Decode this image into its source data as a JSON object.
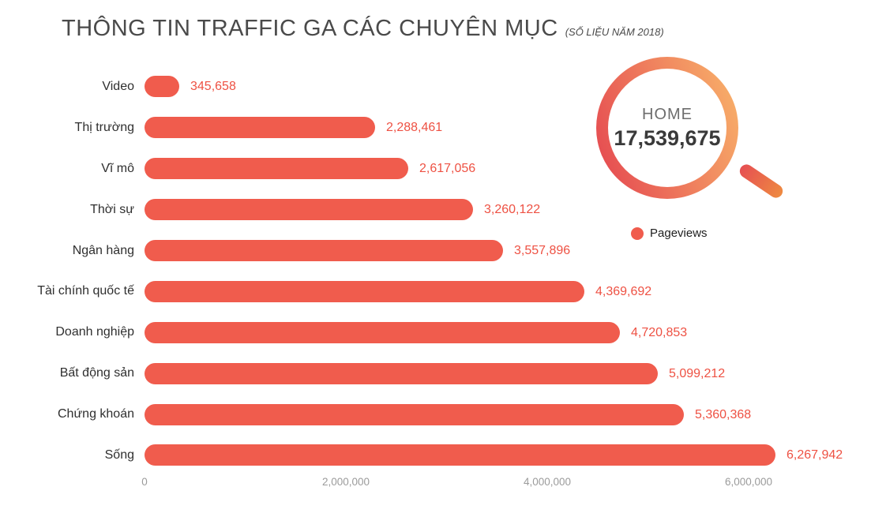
{
  "title": "THÔNG TIN TRAFFIC GA CÁC CHUYÊN MỤC",
  "subtitle": "(SỐ LIỆU NĂM 2018)",
  "home_badge": {
    "label": "HOME",
    "value": "17,539,675"
  },
  "legend": {
    "label": "Pageviews"
  },
  "colors": {
    "bar": "#f05c4d",
    "value_text": "#ee5143",
    "category_text": "#2f2f2f",
    "axis_text": "#9b9b9b",
    "title_text": "#4a4a4a",
    "ring_gradient_start": "#e64f52",
    "ring_gradient_end": "#f7ab68"
  },
  "chart_data": {
    "type": "bar",
    "orientation": "horizontal",
    "title": "THÔNG TIN TRAFFIC GA CÁC CHUYÊN MỤC (SỐ LIỆU NĂM 2018)",
    "categories": [
      "Video",
      "Thị trường",
      "Vĩ mô",
      "Thời sự",
      "Ngân hàng",
      "Tài chính quốc tế",
      "Doanh nghiệp",
      "Bất động sản",
      "Chứng khoán",
      "Sống"
    ],
    "values": [
      345658,
      2288461,
      2617056,
      3260122,
      3557896,
      4369692,
      4720853,
      5099212,
      5360368,
      6267942
    ],
    "value_labels": [
      "345,658",
      "2,288,461",
      "2,617,056",
      "3,260,122",
      "3,557,896",
      "4,369,692",
      "4,720,853",
      "5,099,212",
      "5,360,368",
      "6,267,942"
    ],
    "x_ticks": [
      {
        "label": "0",
        "value": 0
      },
      {
        "label": "2,000,000",
        "value": 2000000
      },
      {
        "label": "4,000,000",
        "value": 4000000
      },
      {
        "label": "6,000,000",
        "value": 6000000
      }
    ],
    "xlim": [
      0,
      6600000
    ],
    "grid": false,
    "legend_entries": [
      "Pageviews"
    ],
    "legend_position": "right",
    "annotation": {
      "label": "HOME",
      "value": 17539675
    }
  }
}
